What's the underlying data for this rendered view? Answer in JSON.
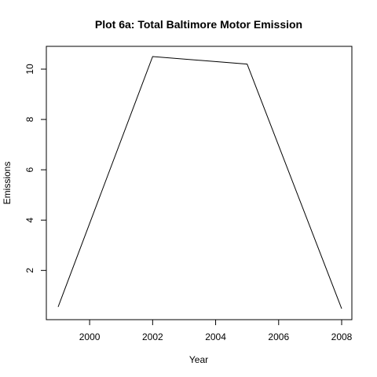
{
  "chart_data": {
    "type": "line",
    "title": "Plot 6a: Total Baltimore Motor Emission",
    "xlabel": "Year",
    "ylabel": "Emissions",
    "x": [
      1999,
      2002,
      2005,
      2008
    ],
    "series": [
      {
        "values": [
          0.55,
          10.5,
          10.2,
          0.48
        ],
        "color": "#000000"
      }
    ],
    "xlim": [
      1999,
      2008
    ],
    "ylim": [
      0.48,
      10.5
    ],
    "xticks": [
      2000,
      2002,
      2004,
      2006,
      2008
    ],
    "yticks": [
      2,
      4,
      6,
      8,
      10
    ],
    "grid": false,
    "box": true
  }
}
